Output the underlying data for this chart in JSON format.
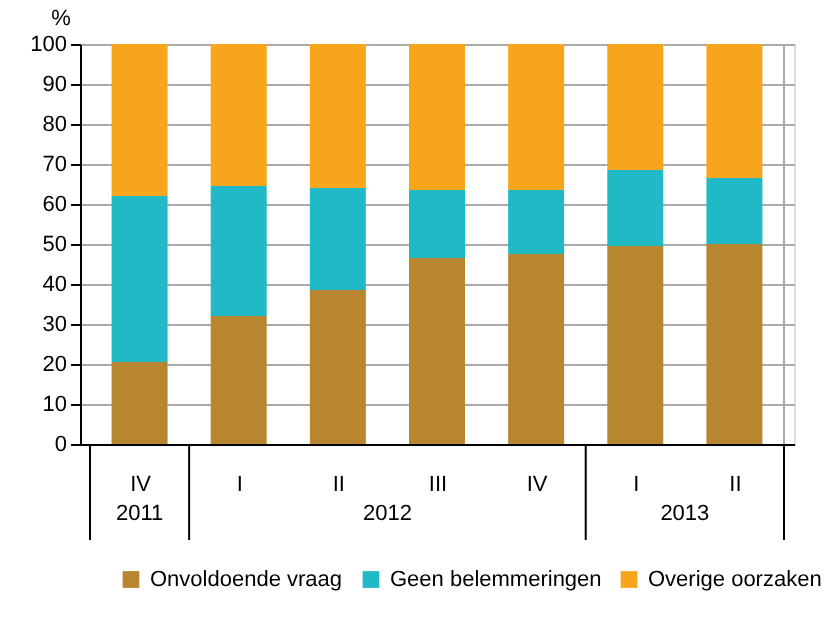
{
  "chart_data": {
    "type": "bar",
    "stacked": true,
    "ylabel": "%",
    "categories": [
      "IV",
      "I",
      "II",
      "III",
      "IV",
      "I",
      "II"
    ],
    "series": [
      {
        "name": "Onvoldoende vraag",
        "color": "#b8862f",
        "values": [
          20.5,
          32,
          38.5,
          46.5,
          47.5,
          49.5,
          50
        ]
      },
      {
        "name": "Geen belemmeringen",
        "color": "#1fbac6",
        "values": [
          41.5,
          32.5,
          25.5,
          17,
          16,
          19,
          16.5
        ]
      },
      {
        "name": "Overige oorzaken",
        "color": "#f7a51c",
        "values": [
          38,
          35.5,
          36,
          36.5,
          36.5,
          31.5,
          33.5
        ]
      }
    ],
    "annotations": [
      "2011",
      "2012",
      "2013"
    ],
    "ylim": [
      0,
      100
    ],
    "yticks": [
      0,
      10,
      20,
      30,
      40,
      50,
      60,
      70,
      80,
      90,
      100
    ],
    "grid": "y",
    "legend": "bottom"
  }
}
